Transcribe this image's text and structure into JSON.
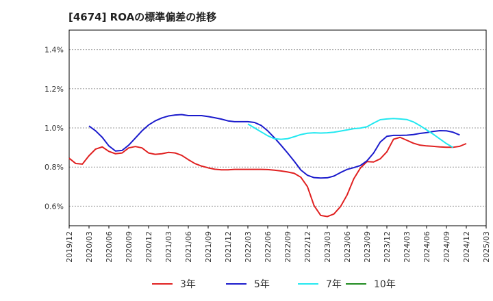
{
  "chart_data": {
    "type": "line",
    "title": "[4674]  ROAの標準偏差の推移",
    "ylim": [
      0.5,
      1.5
    ],
    "yticks": [
      0.6,
      0.8,
      1.0,
      1.2,
      1.4
    ],
    "ytick_labels": [
      "0.6%",
      "0.8%",
      "1.0%",
      "1.2%",
      "1.4%"
    ],
    "xticks": [
      "2019/12",
      "2020/03",
      "2020/06",
      "2020/09",
      "2020/12",
      "2021/03",
      "2021/06",
      "2021/09",
      "2021/12",
      "2022/03",
      "2022/06",
      "2022/09",
      "2022/12",
      "2023/03",
      "2023/06",
      "2023/09",
      "2023/12",
      "2024/03",
      "2024/06",
      "2024/09",
      "2024/12",
      "2025/03"
    ],
    "grid": "horizontal dashed",
    "legend_position": "bottom",
    "series": [
      {
        "name": "3年",
        "color": "#e02020",
        "start": "2019/12",
        "values": [
          0.845,
          0.818,
          0.815,
          0.858,
          0.892,
          0.903,
          0.88,
          0.868,
          0.872,
          0.898,
          0.905,
          0.898,
          0.872,
          0.865,
          0.868,
          0.875,
          0.872,
          0.86,
          0.838,
          0.818,
          0.805,
          0.796,
          0.789,
          0.786,
          0.786,
          0.788,
          0.788,
          0.788,
          0.788,
          0.788,
          0.787,
          0.784,
          0.78,
          0.775,
          0.768,
          0.748,
          0.7,
          0.603,
          0.553,
          0.547,
          0.56,
          0.598,
          0.658,
          0.74,
          0.795,
          0.828,
          0.826,
          0.842,
          0.878,
          0.942,
          0.952,
          0.937,
          0.922,
          0.912,
          0.908,
          0.906,
          0.903,
          0.901,
          0.901,
          0.906,
          0.92
        ]
      },
      {
        "name": "5年",
        "color": "#1a1acc",
        "start": "2020/03",
        "values": [
          1.01,
          0.985,
          0.952,
          0.908,
          0.882,
          0.885,
          0.912,
          0.948,
          0.985,
          1.015,
          1.036,
          1.051,
          1.061,
          1.066,
          1.068,
          1.063,
          1.063,
          1.063,
          1.058,
          1.052,
          1.045,
          1.036,
          1.032,
          1.032,
          1.032,
          1.028,
          1.013,
          0.985,
          0.95,
          0.912,
          0.872,
          0.83,
          0.785,
          0.758,
          0.746,
          0.744,
          0.745,
          0.754,
          0.772,
          0.788,
          0.797,
          0.808,
          0.832,
          0.872,
          0.928,
          0.957,
          0.962,
          0.962,
          0.963,
          0.966,
          0.972,
          0.976,
          0.982,
          0.986,
          0.985,
          0.978,
          0.964
        ]
      },
      {
        "name": "7年",
        "color": "#22e8f0",
        "start": "2022/03",
        "values": [
          1.02,
          1.0,
          0.98,
          0.96,
          0.945,
          0.942,
          0.945,
          0.955,
          0.966,
          0.973,
          0.975,
          0.974,
          0.975,
          0.978,
          0.984,
          0.99,
          0.996,
          0.999,
          1.006,
          1.025,
          1.042,
          1.046,
          1.048,
          1.046,
          1.043,
          1.031,
          1.012,
          0.99,
          0.968,
          0.944,
          0.92,
          0.9
        ]
      },
      {
        "name": "10年",
        "color": "#1f8a1f",
        "start": "2019/12",
        "values": []
      }
    ]
  }
}
